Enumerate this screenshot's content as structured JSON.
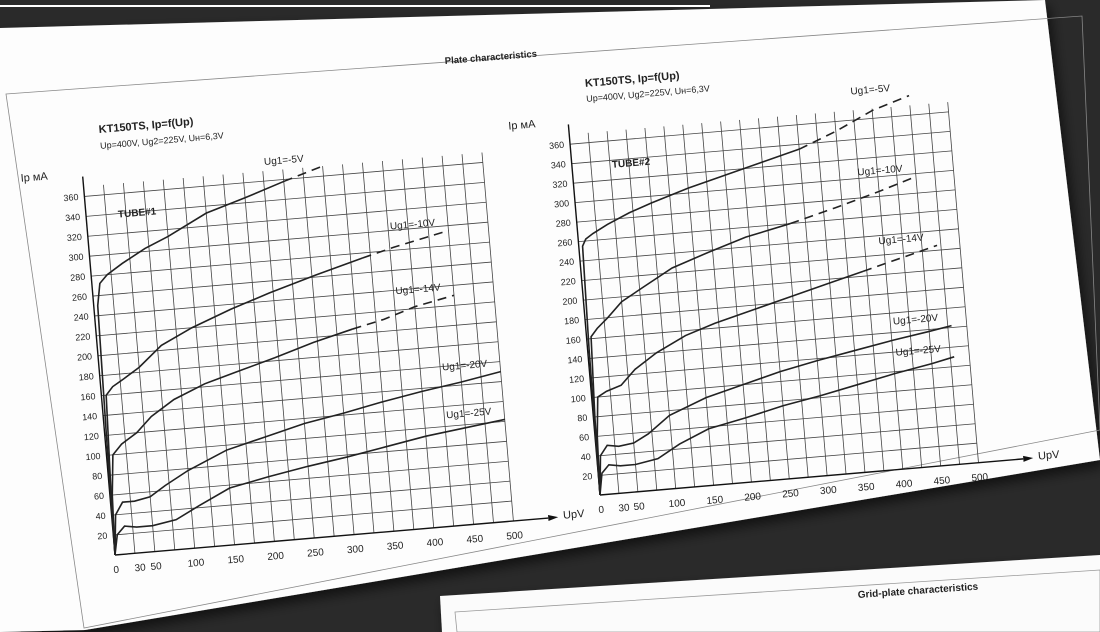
{
  "sheet_title": "Plate characteristics",
  "second_sheet_title": "Grid-plate characteristics",
  "chart_data": [
    {
      "type": "line",
      "title": "KT150TS, Ip=f(Up)",
      "subtitle": "Up=400V, Ug2=225V, Uн=6,3V",
      "tag": "TUBE#1",
      "xlabel": "UpV",
      "ylabel": "Ip мA",
      "xlim": [
        0,
        500
      ],
      "ylim": [
        0,
        370
      ],
      "x_ticks": [
        0,
        30,
        50,
        100,
        150,
        200,
        250,
        300,
        350,
        400,
        450,
        500
      ],
      "y_ticks": [
        20,
        40,
        60,
        80,
        100,
        120,
        140,
        160,
        180,
        200,
        220,
        240,
        260,
        280,
        300,
        320,
        340,
        360
      ],
      "grid": true,
      "series": [
        {
          "name": "Ug1=-5V",
          "x": [
            0,
            2,
            5,
            10,
            20,
            40,
            70,
            100,
            150,
            200,
            250,
            300
          ],
          "y": [
            0,
            120,
            250,
            272,
            280,
            290,
            303,
            313,
            333,
            345,
            358,
            370
          ],
          "dashed_from_x": 250
        },
        {
          "name": "Ug1=-10V",
          "x": [
            0,
            2,
            6,
            15,
            30,
            50,
            80,
            120,
            170,
            220,
            280,
            340,
            380,
            450
          ],
          "y": [
            0,
            70,
            160,
            168,
            175,
            185,
            205,
            220,
            235,
            248,
            262,
            275,
            283,
            295
          ],
          "dashed_from_x": 340
        },
        {
          "name": "Ug1=-14V",
          "x": [
            0,
            3,
            8,
            20,
            40,
            60,
            90,
            130,
            170,
            220,
            270,
            320,
            360,
            400,
            450
          ],
          "y": [
            0,
            60,
            100,
            110,
            120,
            135,
            150,
            163,
            172,
            183,
            195,
            205,
            212,
            222,
            230
          ],
          "dashed_from_x": 320
        },
        {
          "name": "Ug1=-20V",
          "x": [
            0,
            5,
            15,
            30,
            50,
            70,
            100,
            150,
            200,
            250,
            300,
            350,
            400,
            450,
            500
          ],
          "y": [
            0,
            40,
            52,
            52,
            55,
            65,
            78,
            95,
            105,
            115,
            122,
            130,
            137,
            143,
            150
          ]
        },
        {
          "name": "Ug1=-25V",
          "x": [
            0,
            5,
            15,
            30,
            50,
            80,
            110,
            150,
            200,
            250,
            300,
            350,
            400,
            450,
            500
          ],
          "y": [
            0,
            20,
            28,
            26,
            26,
            30,
            42,
            57,
            65,
            72,
            78,
            85,
            92,
            97,
            102
          ]
        }
      ]
    },
    {
      "type": "line",
      "title": "KT150TS, Ip=f(Up)",
      "subtitle": "Up=400V, Ug2=225V, Uн=6,3V",
      "tag": "TUBE#2",
      "xlabel": "UpV",
      "ylabel": "Ip мA",
      "xlim": [
        0,
        500
      ],
      "ylim": [
        0,
        370
      ],
      "x_ticks": [
        0,
        30,
        50,
        100,
        150,
        200,
        250,
        300,
        350,
        400,
        450,
        500
      ],
      "y_ticks": [
        20,
        40,
        60,
        80,
        100,
        120,
        140,
        160,
        180,
        200,
        220,
        240,
        260,
        280,
        300,
        320,
        340,
        360
      ],
      "grid": true,
      "series": [
        {
          "name": "Ug1=-5V",
          "x": [
            0,
            2,
            5,
            10,
            20,
            40,
            70,
            100,
            150,
            200,
            250,
            300,
            350,
            400,
            450
          ],
          "y": [
            0,
            150,
            255,
            262,
            267,
            275,
            285,
            293,
            305,
            315,
            325,
            335,
            350,
            368,
            380
          ],
          "dashed_from_x": 300
        },
        {
          "name": "Ug1=-10V",
          "x": [
            0,
            2,
            6,
            15,
            30,
            50,
            80,
            120,
            170,
            220,
            280,
            340,
            400,
            450
          ],
          "y": [
            0,
            80,
            162,
            170,
            180,
            195,
            208,
            225,
            238,
            250,
            260,
            272,
            285,
            297
          ],
          "dashed_from_x": 280
        },
        {
          "name": "Ug1=-14V",
          "x": [
            0,
            3,
            8,
            20,
            40,
            60,
            90,
            130,
            170,
            220,
            270,
            320,
            370,
            420,
            470
          ],
          "y": [
            0,
            60,
            100,
            105,
            110,
            125,
            140,
            155,
            165,
            175,
            185,
            195,
            205,
            215,
            225
          ],
          "dashed_from_x": 370
        },
        {
          "name": "Ug1=-20V",
          "x": [
            0,
            5,
            15,
            30,
            50,
            70,
            100,
            150,
            200,
            250,
            300,
            350,
            400,
            450,
            480
          ],
          "y": [
            0,
            40,
            50,
            48,
            50,
            58,
            75,
            90,
            100,
            110,
            118,
            125,
            132,
            138,
            142
          ]
        },
        {
          "name": "Ug1=-25V",
          "x": [
            0,
            5,
            15,
            30,
            50,
            80,
            110,
            150,
            200,
            250,
            300,
            350,
            400,
            450,
            480
          ],
          "y": [
            0,
            22,
            30,
            28,
            28,
            32,
            45,
            58,
            66,
            75,
            82,
            90,
            98,
            105,
            110
          ]
        }
      ]
    }
  ]
}
